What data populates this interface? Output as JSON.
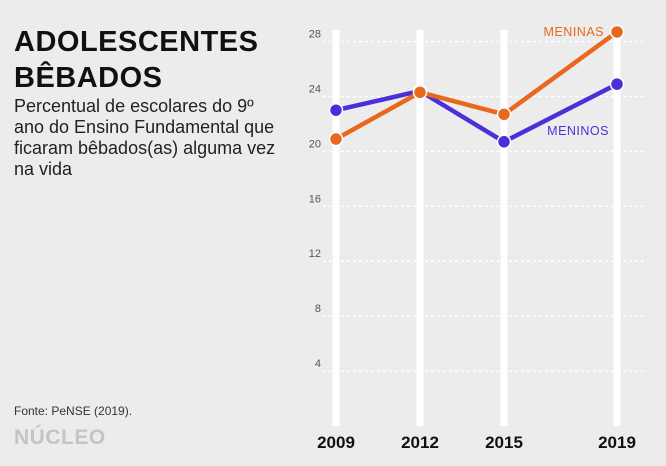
{
  "title": "ADOLESCENTES BÊBADOS",
  "subtitle": "Percentual de escolares do 9º ano do Ensino Fundamental que ficaram bêbados(as) alguma vez na vida",
  "source": "Fonte: PeNSE (2019).",
  "logo": "NÚCLEO",
  "colors": {
    "meninas": "#e8681e",
    "meninos": "#4b2fd8",
    "background": "#ececec",
    "grid": "#ffffff"
  },
  "chart_data": {
    "type": "line",
    "x": [
      2009,
      2012,
      2015,
      2019
    ],
    "x_tick_labels": [
      "2009",
      "2012",
      "2015",
      "2019"
    ],
    "y_ticks": [
      4,
      8,
      12,
      16,
      20,
      24,
      28
    ],
    "y_tick_labels": [
      "4",
      "8",
      "12",
      "16",
      "20",
      "24",
      "28"
    ],
    "ylim": [
      0,
      29.5
    ],
    "grid": true,
    "title": "",
    "xlabel": "",
    "ylabel": "",
    "series": [
      {
        "name": "MENINAS",
        "color": "#e8681e",
        "values": [
          20.9,
          24.3,
          22.7,
          28.7
        ]
      },
      {
        "name": "MENINOS",
        "color": "#4b2fd8",
        "values": [
          23.0,
          24.4,
          20.7,
          24.9
        ]
      }
    ]
  }
}
